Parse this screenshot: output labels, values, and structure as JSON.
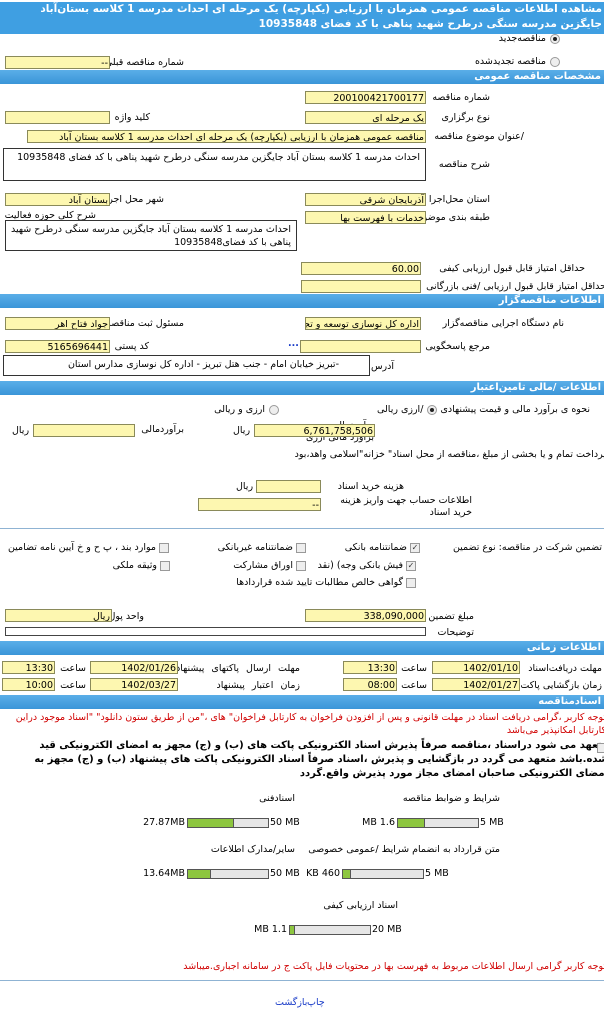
{
  "header": {
    "title": "مشاهده اطلاعات مناقصه عمومی همزمان با ارزیابی (یکپارچه) یک مرحله ای احداث مدرسه 1 کلاسه بستان‌آباد جایگزین مدرسه سنگی درطرح شهید پناهی با کد فضای 10935848"
  },
  "tender_type": {
    "new_label": "مناقصه‌جدید",
    "new_selected": true,
    "renewed_label": "مناقصه تجدیدشده",
    "prev_number_label": "شماره مناقصه قبلی",
    "prev_number": "--"
  },
  "general": {
    "section": "مشخصات مناقصه عمومی",
    "number_label": "شماره مناقصه",
    "number": "200100421700177",
    "holding_label": "نوع برگزاری",
    "holding": "یک مرحله ای",
    "keyword_label": "کلید واژه",
    "keyword": "",
    "title_label": "/عنوان موضوع مناقصه",
    "title": "مناقصه عمومی همزمان با ارزیابی (یکپارچه) یک مرحله ای احداث مدرسه 1 کلاسه بستان آباد",
    "desc_label": "شرح مناقصه",
    "desc": "احداث مدرسه 1 کلاسه بستان آباد جایگزین مدرسه سنگی درطرح شهید پناهی با کد فضای 10935848",
    "province_label": "استان محل‌اجرا",
    "province": "آذربایجان شرقی",
    "city_label": "شهر محل اجرا",
    "city": "بستان آباد",
    "category_label": "طبقه بندی موضوعی",
    "category": "خدمات با فهرست بها",
    "scope_label": "شرح کلی حوزه فعالیت",
    "scope": "احداث مدرسه 1 کلاسه بستان آباد جایگزین مدرسه سنگی درطرح شهید پناهی با کد فضای10935848",
    "min_quality_label": "حداقل امتیاز قابل قبول ارزیابی کیفی",
    "min_quality": "60.00",
    "min_tech_label": "حداقل امتیاز قابل قبول ارزیابی /فنی بازرگانی",
    "min_tech": ""
  },
  "organizer": {
    "section": "اطلاعات مناقصه‌گزار",
    "org_label": "نام دستگاه اجرایی مناقصه‌گزار",
    "org": "اداره کل نوسازی توسعه و تجهیز مدارس",
    "responsible_label": "مسئول ثبت مناقصه",
    "responsible": "جواد فتاح اهر",
    "ref_label": "مرجع پاسخگویی",
    "ref": "",
    "ref_more": "...",
    "postal_label": "کد پستی",
    "postal": "5165696441",
    "address_label": "آدرس",
    "address": "-تبریز خیابان امام - جنب هتل تبریز - اداره کل نوسازی مدارس استان"
  },
  "finance": {
    "section": "اطلاعات /مالی تامین‌اعتبار",
    "method_label": "نحوه ی برآورد مالی و قیمت پیشنهادی",
    "opt_rial": "/ارزی ریالی",
    "opt_rial_selected": true,
    "opt_both": "ارزی و ریالی",
    "estimate_label1": "برآوردمالی",
    "estimate_label2": "برآورد مالی ارزی",
    "estimate": "6,761,758,506",
    "currency": "ریال",
    "estimate2_label": "برآوردمالی",
    "estimate2": "",
    "currency2": "ریال",
    "treasury_note": "پرداخت تمام و یا بخشی از مبلغ ،مناقصه از محل اسناد\" خزانه\"اسلامی واهد،بود",
    "doc_fee_label": "هزینه خرید اسناد",
    "doc_fee": "",
    "doc_fee_unit": "ریال",
    "account_label": "اطلاعات حساب جهت واریز هزینه خرید اسناد",
    "account": "--"
  },
  "guarantee": {
    "label": "تضمین شرکت در مناقصه: نوع تضمین",
    "options": [
      {
        "label": "ضمانتنامه بانکی",
        "checked": true
      },
      {
        "label": "ضمانتنامه غیربانکی",
        "checked": false
      },
      {
        "label": "موارد بند ، پ ح و خ آیین نامه تضامین",
        "checked": false
      },
      {
        "label": "فیش بانکی وجه) (نقد",
        "checked": true
      },
      {
        "label": "اوراق مشارکت",
        "checked": false
      },
      {
        "label": "وثیقه ملکی",
        "checked": false
      },
      {
        "label": "گواهی خالص مطالبات تایید شده قراردادها",
        "checked": false
      }
    ],
    "amount_label": "مبلغ تضمین",
    "amount": "338,090,000",
    "unit_label": "واحد پول",
    "unit": "ریال",
    "notes_label": "توضیحات",
    "notes": ""
  },
  "timing": {
    "section": "اطلاعات زمانی",
    "doc_deadline_label": "مهلت دریافت‌اسناد",
    "doc_deadline_date": "1402/01/10",
    "doc_deadline_time": "13:30",
    "submit_label": "مهلت ارسال پاکتهای پیشنهاد",
    "submit_date": "1402/01/26",
    "submit_time": "13:30",
    "open_label": "زمان بازگشایی پاکت‌ها",
    "open_date": "1402/01/27",
    "open_time": "08:00",
    "validity_label": "زمان اعتبار پیشنهاد",
    "validity_date": "1402/03/27",
    "validity_time": "10:00",
    "time_label": "ساعت"
  },
  "documents": {
    "section": "اسنادمناقصه",
    "notice": "توجه کاربر ،گرامی دریافت اسناد در مهلت قانونی و پس از افزودن فراخوان به کارتابل فراخوان\" های ،\"من از طریق ستون دانلود\" \"اسناد موجود دراین کارتابل امکانپذیر می‌باشد",
    "commit": "متعهد می شود دراسناد ،مناقصه صرفاً پذیرش اسناد الکترونیکی پاکت های (ب) و (ج) مجهز به امضای الکترونیکی قید شده.باشد متعهد می گردد در بازگشایی و پذیرش ،اسناد صرفاً اسناد الکترونیکی پاکت های پیشنهاد (ب) و (ج) مجهز به امضای الکترونیکی صاحبان امضای مجاز مورد پذیرش واقع.گردد",
    "files": [
      {
        "label": "شرایط و ضوابط مناقصه",
        "used": "1.6 MB",
        "max": "5 MB",
        "fraction": 0.32
      },
      {
        "label": "اسنادفنی",
        "used": "27.87MB",
        "max": "50 MB",
        "fraction": 0.557
      },
      {
        "label": "متن قرارداد به انضمام شرایط /عمومی خصوصی",
        "used": "460 KB",
        "max": "5 MB",
        "fraction": 0.09
      },
      {
        "label": "سایر/مدارک اطلاعات",
        "used": "13.64MB",
        "max": "50 MB",
        "fraction": 0.27
      },
      {
        "label": "اسناد ارزیابی کیفی",
        "used": "1.1 MB",
        "max": "20 MB",
        "fraction": 0.055
      }
    ],
    "price_notice": "توجه کاربر گرامی ارسال اطلاعات مربوط به فهرست بها در محتویات فایل پاکت ج در سامانه اجباری.میباشد"
  },
  "footer": {
    "print": "چاپ",
    "back": "بازگشت"
  },
  "colors": {
    "section_bar": "#3f9fe2",
    "input_bg": "#fdf7b0",
    "progress": "#8dc63f",
    "warning": "#d00000",
    "link": "#1a3cc8"
  }
}
